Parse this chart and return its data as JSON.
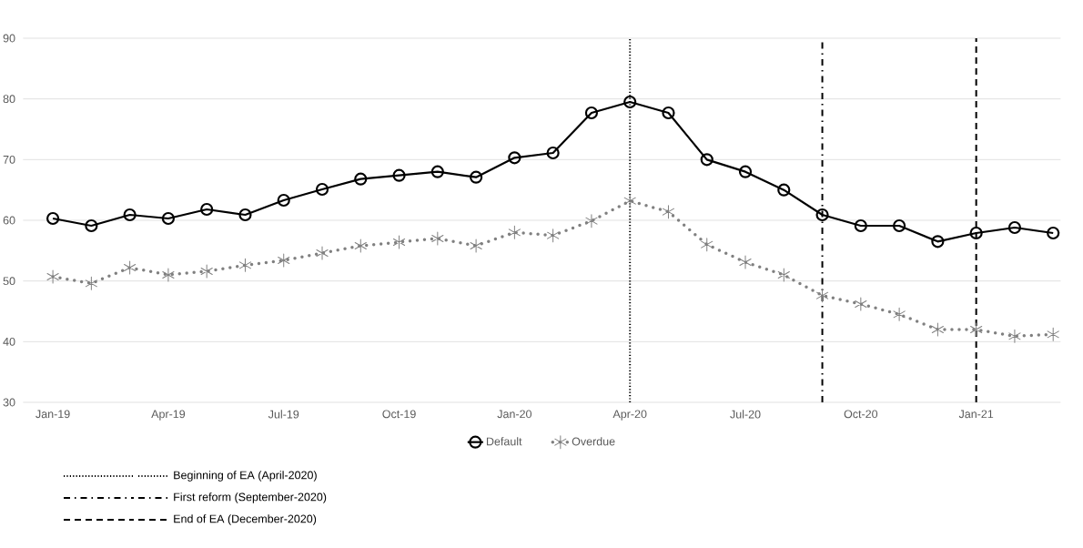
{
  "chart_data": {
    "type": "line",
    "x": [
      "2019-01",
      "2019-02",
      "2019-03",
      "2019-04",
      "2019-05",
      "2019-06",
      "2019-07",
      "2019-08",
      "2019-09",
      "2019-10",
      "2019-11",
      "2019-12",
      "2020-01",
      "2020-02",
      "2020-03",
      "2020-04",
      "2020-05",
      "2020-06",
      "2020-07",
      "2020-08",
      "2020-09",
      "2020-10",
      "2020-11",
      "2020-12",
      "2021-01",
      "2021-02",
      "2021-03"
    ],
    "series": [
      {
        "name": "Default",
        "color": "#000000",
        "marker": "circle",
        "line_style": "solid",
        "values": [
          60.3,
          59.1,
          60.9,
          60.3,
          61.8,
          60.9,
          63.3,
          65.1,
          66.8,
          67.4,
          68.0,
          67.1,
          70.3,
          71.1,
          77.7,
          79.5,
          77.7,
          70.0,
          68.0,
          65.0,
          60.9,
          59.1,
          59.1,
          56.5,
          57.9,
          58.8,
          57.9
        ]
      },
      {
        "name": "Overdue",
        "color": "#808080",
        "marker": "cross",
        "line_style": "dotted",
        "values": [
          50.7,
          49.6,
          52.2,
          51.0,
          51.6,
          52.6,
          53.4,
          54.6,
          55.8,
          56.4,
          57.0,
          55.8,
          58.0,
          57.5,
          59.9,
          63.2,
          61.4,
          56.0,
          53.1,
          51.0,
          47.6,
          46.2,
          44.5,
          42.0,
          42.0,
          40.9,
          41.2
        ]
      }
    ],
    "xlim": [
      "2018-12-08",
      "2021-03-07"
    ],
    "xticks": [
      {
        "value": "2019-01",
        "label": "Jan-19"
      },
      {
        "value": "2019-04",
        "label": "Apr-19"
      },
      {
        "value": "2019-07",
        "label": "Jul-19"
      },
      {
        "value": "2019-10",
        "label": "Oct-19"
      },
      {
        "value": "2020-01",
        "label": "Jan-20"
      },
      {
        "value": "2020-04",
        "label": "Apr-20"
      },
      {
        "value": "2020-07",
        "label": "Jul-20"
      },
      {
        "value": "2020-10",
        "label": "Oct-20"
      },
      {
        "value": "2021-01",
        "label": "Jan-21"
      }
    ],
    "ylim": [
      30,
      90
    ],
    "yticks": [
      30,
      40,
      50,
      60,
      70,
      80,
      90
    ],
    "grid": "y",
    "legend": "bottom",
    "ref_lines": [
      {
        "axis": "x",
        "value": "2020-04",
        "label": "Beginning of EA (April-2020)",
        "line_style": "dotted",
        "color": "#000000"
      },
      {
        "axis": "x",
        "value": "2020-09",
        "label": "First reform (September-2020)",
        "line_style": "dashdot",
        "color": "#000000"
      },
      {
        "axis": "x",
        "value": "2021-01",
        "label": "End of EA (December-2020)",
        "line_style": "dashed",
        "color": "#000000"
      }
    ]
  }
}
